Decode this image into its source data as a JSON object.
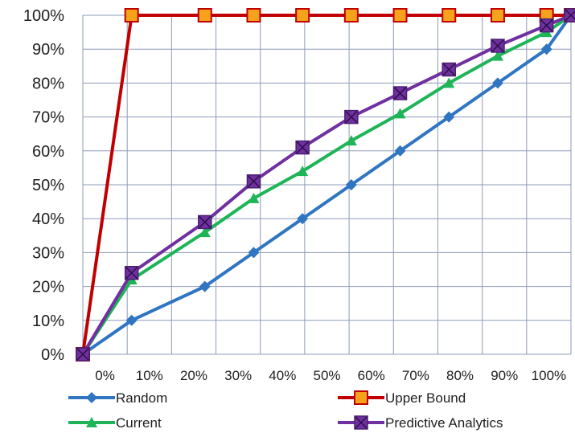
{
  "chart_data": {
    "type": "line",
    "x": [
      0,
      10,
      25,
      35,
      45,
      55,
      65,
      75,
      85,
      95,
      100
    ],
    "x_tick_labels": [
      "0%",
      "10%",
      "20%",
      "30%",
      "40%",
      "50%",
      "60%",
      "70%",
      "80%",
      "90%",
      "100%"
    ],
    "y_tick_labels": [
      "0%",
      "10%",
      "20%",
      "30%",
      "40%",
      "50%",
      "60%",
      "70%",
      "80%",
      "90%",
      "100%"
    ],
    "xlim": [
      0,
      100
    ],
    "ylim": [
      0,
      100
    ],
    "grid": true,
    "legend_position": "bottom",
    "series": [
      {
        "name": "Random",
        "color": "#2f75c2",
        "marker": "diamond",
        "values": [
          0,
          10,
          20,
          30,
          40,
          50,
          60,
          70,
          80,
          90,
          100
        ]
      },
      {
        "name": "Upper Bound",
        "color": "#c00000",
        "marker": "square-orange",
        "values": [
          0,
          100,
          100,
          100,
          100,
          100,
          100,
          100,
          100,
          100,
          100
        ]
      },
      {
        "name": "Current",
        "color": "#1eb457",
        "marker": "triangle",
        "values": [
          0,
          22,
          36,
          46,
          54,
          63,
          71,
          80,
          88,
          95,
          100
        ]
      },
      {
        "name": "Predictive Analytics",
        "color": "#7030a0",
        "marker": "square-x",
        "values": [
          0,
          24,
          39,
          51,
          61,
          70,
          77,
          84,
          91,
          97,
          100
        ]
      }
    ]
  }
}
